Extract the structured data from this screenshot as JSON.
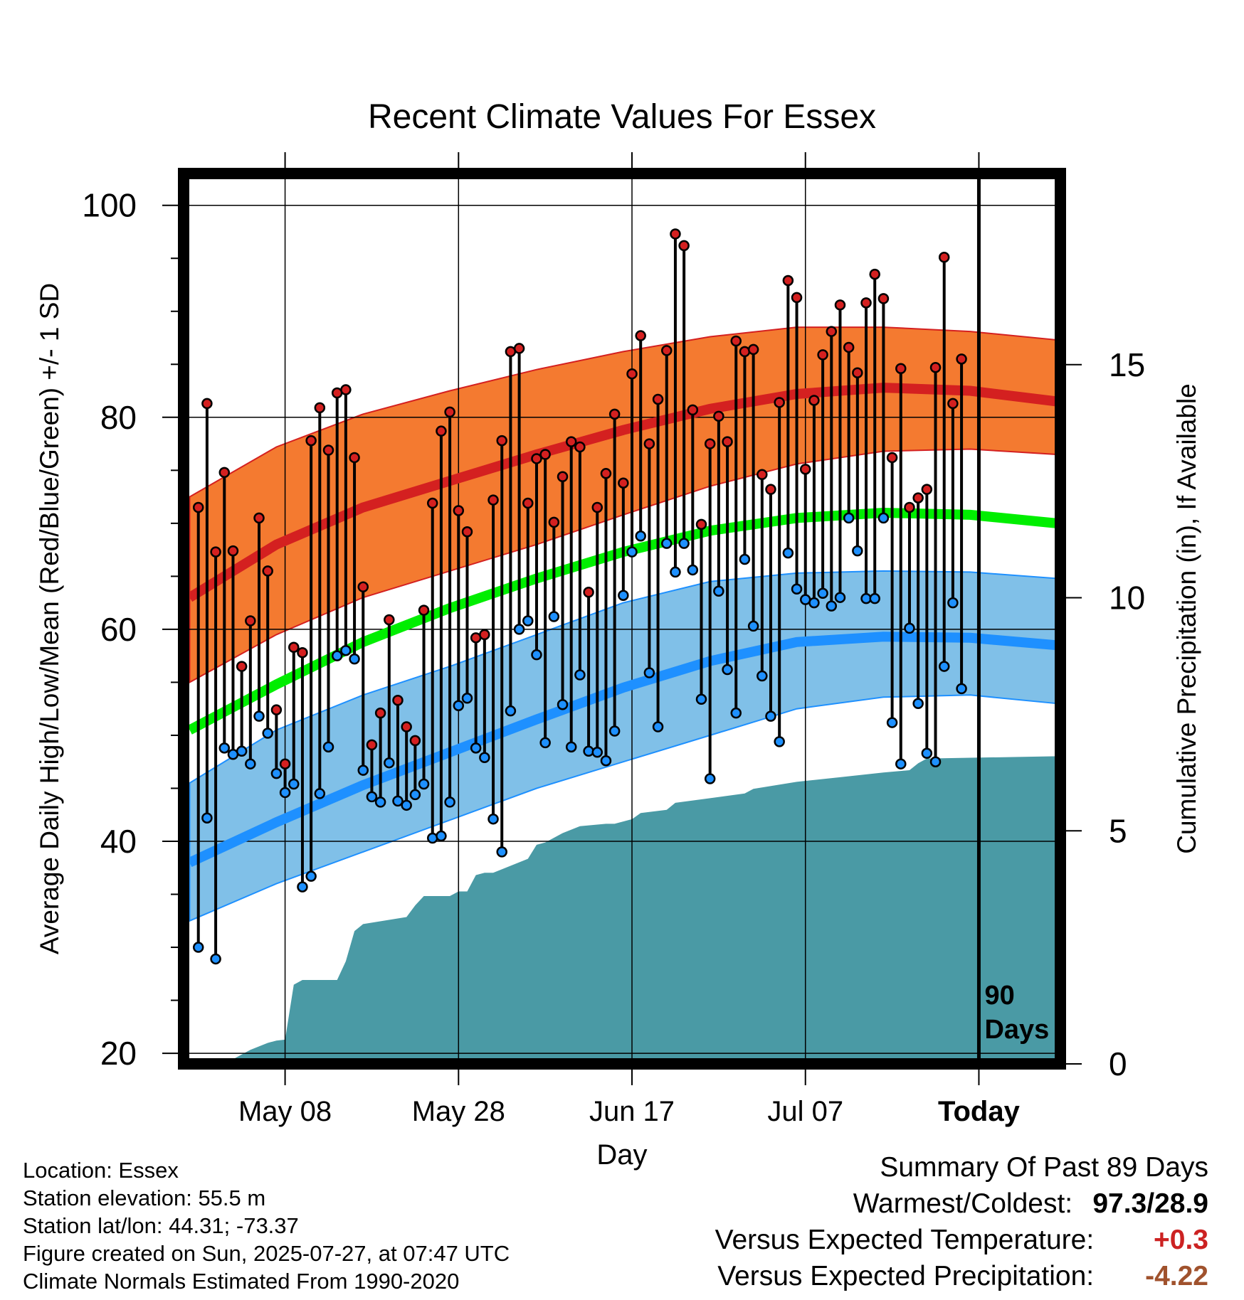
{
  "chart_data": {
    "type": "line",
    "title": "Recent Climate Values For Essex",
    "xlabel": "Day",
    "ylabel": "Average Daily High/Low/Mean (Red/Blue/Green) +/- 1 SD",
    "y2label": "Cumulative Precipitation (in), If Available",
    "ylim": [
      19,
      103
    ],
    "y2lim": [
      0,
      15
    ],
    "yticks": [
      20,
      40,
      60,
      80,
      100
    ],
    "y2ticks": [
      0,
      5,
      10,
      15
    ],
    "xlim": [
      -0.7,
      100.4
    ],
    "x_ticks": [
      {
        "label": "May 08",
        "day": 11
      },
      {
        "label": "May 28",
        "day": 31
      },
      {
        "label": "Jun 17",
        "day": 51
      },
      {
        "label": "Jul 07",
        "day": 71
      },
      {
        "label": "Today",
        "day": 91
      }
    ],
    "today_day": 91,
    "today_label": [
      "90",
      "Days"
    ],
    "grid": true,
    "colors": {
      "high": "#d42020",
      "high_band": "#f47a30",
      "low": "#1e90ff",
      "low_band": "#80c0e8",
      "mean": "#00ee00",
      "precip": "#4a9aa5",
      "frame": "#000000"
    },
    "normals": {
      "day": [
        0,
        10,
        20,
        30,
        40,
        50,
        60,
        70,
        80,
        90,
        100
      ],
      "high": [
        63,
        68,
        71.5,
        74,
        76.5,
        78.8,
        80.8,
        82.2,
        82.8,
        82.5,
        81.5
      ],
      "high_sd_upper": [
        72.5,
        77.2,
        80.3,
        82.5,
        84.5,
        86.2,
        87.6,
        88.5,
        88.5,
        88.1,
        87.3
      ],
      "high_sd_lower": [
        55,
        59.5,
        63,
        65.5,
        68,
        70.8,
        73.5,
        75.6,
        76.8,
        77,
        76.5
      ],
      "mean": [
        50.5,
        54.8,
        58.8,
        62,
        64.8,
        67.3,
        69.3,
        70.5,
        71,
        70.8,
        70
      ],
      "low": [
        38,
        41.8,
        45.3,
        48.4,
        51.5,
        54.5,
        57,
        58.8,
        59.3,
        59.2,
        58.5
      ],
      "low_sd_upper": [
        45.5,
        50.5,
        53.8,
        56.5,
        59.5,
        62.5,
        64.5,
        65.3,
        65.5,
        65.4,
        64.8
      ],
      "low_sd_lower": [
        32.5,
        36,
        39,
        42,
        45,
        47.5,
        50,
        52.5,
        53.6,
        53.8,
        53
      ]
    },
    "daily_high": [
      71.5,
      81.3,
      67.3,
      74.8,
      67.4,
      56.5,
      60.8,
      70.5,
      65.5,
      52.4,
      47.3,
      58.3,
      57.8,
      77.8,
      80.9,
      76.9,
      82.3,
      82.6,
      76.2,
      64.0,
      49.1,
      52.1,
      60.9,
      53.3,
      50.8,
      49.5,
      61.8,
      71.9,
      78.7,
      80.5,
      71.2,
      69.2,
      59.2,
      59.5,
      72.2,
      77.8,
      86.2,
      86.5,
      71.9,
      76.1,
      76.5,
      70.1,
      74.4,
      77.7,
      77.2,
      63.5,
      71.5,
      74.7,
      80.3,
      73.8,
      84.1,
      87.7,
      77.5,
      81.7,
      86.3,
      97.3,
      96.2,
      80.7,
      69.9,
      77.5,
      80.1,
      77.7,
      87.2,
      86.2,
      86.4,
      74.6,
      73.2,
      81.4,
      92.9,
      91.3,
      75.1,
      81.6,
      85.9,
      88.1,
      90.6,
      86.6,
      84.2,
      90.8,
      93.5,
      91.2,
      76.2,
      84.6,
      71.5,
      72.4,
      73.2,
      84.7,
      95.1,
      81.3,
      85.5
    ],
    "daily_low": [
      30.0,
      42.2,
      28.9,
      48.8,
      48.2,
      48.5,
      47.3,
      51.8,
      50.2,
      46.4,
      44.6,
      45.4,
      35.7,
      36.7,
      44.5,
      48.9,
      57.5,
      58.0,
      57.2,
      46.7,
      44.2,
      43.7,
      47.4,
      43.8,
      43.4,
      44.4,
      45.4,
      40.3,
      40.5,
      43.7,
      52.8,
      53.5,
      48.8,
      47.9,
      42.1,
      39.0,
      52.3,
      60.0,
      60.8,
      57.6,
      49.3,
      61.2,
      52.9,
      48.9,
      55.7,
      48.5,
      48.4,
      47.6,
      50.4,
      63.2,
      67.3,
      68.8,
      55.9,
      50.8,
      68.1,
      65.4,
      68.1,
      65.6,
      53.4,
      45.9,
      63.6,
      56.2,
      52.1,
      66.6,
      60.3,
      55.6,
      51.8,
      49.4,
      67.2,
      63.8,
      62.8,
      62.5,
      63.4,
      62.2,
      63.0,
      70.5,
      67.4,
      62.9,
      62.9,
      70.5,
      51.2,
      47.3,
      60.1,
      53.0,
      48.3,
      47.5,
      56.5,
      62.5,
      54.4
    ],
    "precip_cumulative": {
      "day": [
        0,
        4,
        5,
        7,
        9,
        10,
        11,
        12,
        13,
        17,
        18,
        19,
        20,
        25,
        26,
        27,
        30,
        31,
        32,
        33,
        34,
        35,
        39,
        40,
        41,
        43,
        45,
        48,
        49,
        51,
        52,
        55,
        56,
        58,
        60,
        64,
        65,
        70,
        75,
        80,
        83,
        84,
        85,
        100
      ],
      "value": [
        0,
        0,
        0.1,
        0.3,
        0.45,
        0.5,
        0.52,
        1.7,
        1.8,
        1.8,
        2.2,
        2.85,
        3.0,
        3.15,
        3.4,
        3.6,
        3.6,
        3.7,
        3.7,
        4.05,
        4.1,
        4.1,
        4.4,
        4.7,
        4.75,
        4.95,
        5.1,
        5.15,
        5.15,
        5.25,
        5.38,
        5.45,
        5.6,
        5.65,
        5.7,
        5.8,
        5.9,
        6.05,
        6.15,
        6.25,
        6.3,
        6.45,
        6.55,
        6.6
      ]
    }
  },
  "footer": {
    "location": "Location: Essex",
    "elevation": "Station elevation: 55.5 m",
    "latlon": "Station lat/lon: 44.31; -73.37",
    "created": "Figure created on Sun, 2025-07-27, at 07:47 UTC",
    "normals": "Climate Normals Estimated From 1990-2020"
  },
  "summary": {
    "title": "Summary Of Past 89 Days",
    "warmest_label": "Warmest/Coldest:",
    "warmest_value": "97.3/28.9",
    "temp_label": "Versus Expected Temperature:",
    "temp_value": "+0.3",
    "temp_color": "#cc2222",
    "precip_label": "Versus Expected Precipitation:",
    "precip_value": "-4.22",
    "precip_color": "#a0522d"
  }
}
